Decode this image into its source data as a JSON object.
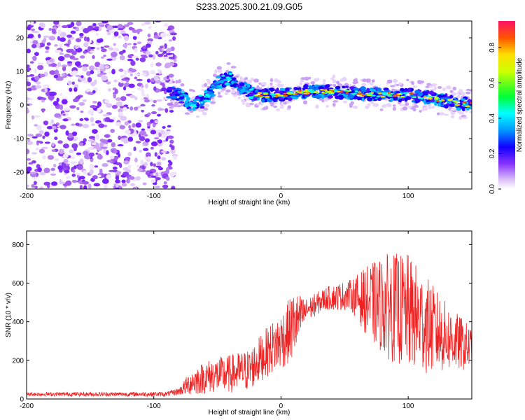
{
  "title": "S233.2025.300.21.09.G05",
  "chart_data": [
    {
      "type": "heatmap",
      "xlabel": "Height of straight line (km)",
      "ylabel": "Frequency (Hz)",
      "xlim": [
        -200,
        150
      ],
      "ylim": [
        -25,
        25
      ],
      "x_ticks": [
        -200,
        -100,
        0,
        100
      ],
      "y_ticks": [
        -20,
        -10,
        0,
        10,
        20
      ],
      "ridge_points": [
        {
          "x": -90,
          "y": 4
        },
        {
          "x": -80,
          "y": 3
        },
        {
          "x": -70,
          "y": 0
        },
        {
          "x": -62,
          "y": 1
        },
        {
          "x": -55,
          "y": 4
        },
        {
          "x": -48,
          "y": 7
        },
        {
          "x": -40,
          "y": 8
        },
        {
          "x": -30,
          "y": 5
        },
        {
          "x": -20,
          "y": 3
        },
        {
          "x": 0,
          "y": 3
        },
        {
          "x": 20,
          "y": 4
        },
        {
          "x": 40,
          "y": 4
        },
        {
          "x": 60,
          "y": 3.5
        },
        {
          "x": 80,
          "y": 3
        },
        {
          "x": 100,
          "y": 3
        },
        {
          "x": 120,
          "y": 2
        },
        {
          "x": 140,
          "y": 0.5
        },
        {
          "x": 150,
          "y": 0
        }
      ],
      "colorbar": {
        "label": "Normalized spectral amplitude",
        "range": [
          0,
          0.95
        ],
        "ticks": [
          0.0,
          0.2,
          0.4,
          0.6,
          0.8
        ]
      }
    },
    {
      "type": "line",
      "xlabel": "Height of straight line (km)",
      "ylabel": "SNR (10 * v/v)",
      "xlim": [
        -200,
        150
      ],
      "ylim": [
        0,
        870
      ],
      "x_ticks": [
        -200,
        -100,
        0,
        100
      ],
      "y_ticks": [
        0,
        200,
        400,
        600,
        800
      ],
      "series": [
        {
          "name": "SNR",
          "color": "#ee2222",
          "envelope": [
            {
              "x": -200,
              "mean": 25,
              "amp": 10
            },
            {
              "x": -90,
              "mean": 25,
              "amp": 12
            },
            {
              "x": -80,
              "mean": 40,
              "amp": 20
            },
            {
              "x": -70,
              "mean": 90,
              "amp": 70
            },
            {
              "x": -55,
              "mean": 120,
              "amp": 90
            },
            {
              "x": -40,
              "mean": 130,
              "amp": 100
            },
            {
              "x": -25,
              "mean": 150,
              "amp": 110
            },
            {
              "x": -10,
              "mean": 250,
              "amp": 130
            },
            {
              "x": 0,
              "mean": 300,
              "amp": 150
            },
            {
              "x": 10,
              "mean": 380,
              "amp": 180
            },
            {
              "x": 20,
              "mean": 460,
              "amp": 60
            },
            {
              "x": 35,
              "mean": 520,
              "amp": 60
            },
            {
              "x": 55,
              "mean": 540,
              "amp": 80
            },
            {
              "x": 70,
              "mean": 500,
              "amp": 200
            },
            {
              "x": 85,
              "mean": 480,
              "amp": 280
            },
            {
              "x": 100,
              "mean": 450,
              "amp": 300
            },
            {
              "x": 115,
              "mean": 380,
              "amp": 250
            },
            {
              "x": 130,
              "mean": 320,
              "amp": 180
            },
            {
              "x": 150,
              "mean": 260,
              "amp": 110
            }
          ]
        }
      ]
    }
  ]
}
